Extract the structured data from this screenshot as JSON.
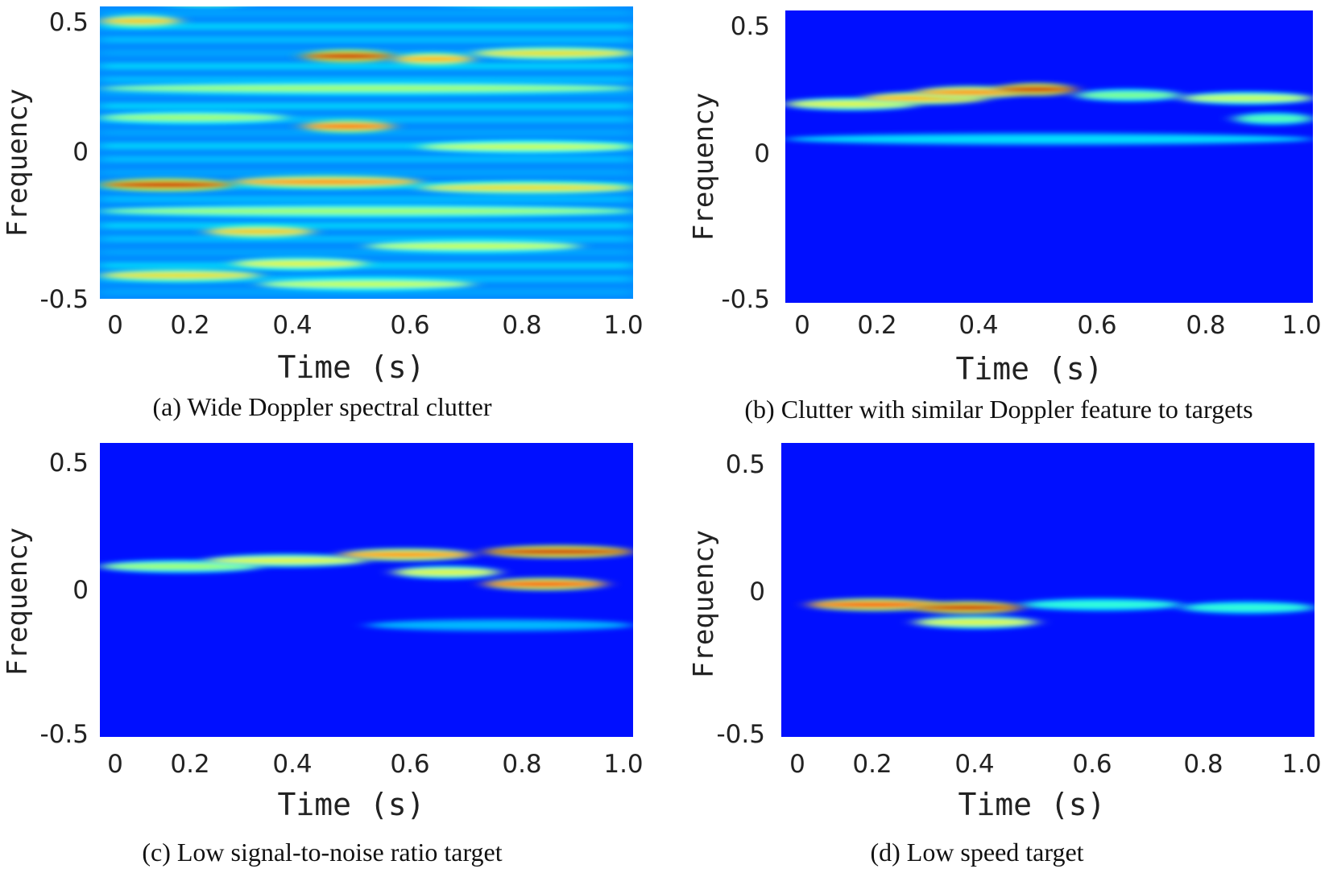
{
  "colors": {
    "background": "#0a0a8c",
    "palette": [
      "#00008f",
      "#0000ff",
      "#0080ff",
      "#00ffff",
      "#80ff80",
      "#ffff00",
      "#ff8000",
      "#ff0000",
      "#800000"
    ]
  },
  "chart_data": [
    {
      "type": "heatmap",
      "caption": "(a) Wide Doppler spectral clutter",
      "xlabel": "Time (s)",
      "ylabel": "Frequency",
      "x_ticks": [
        "0",
        "0.2",
        "0.4",
        "0.6",
        "0.8",
        "1.0"
      ],
      "y_ticks": [
        "0.5",
        "0",
        "-0.5"
      ],
      "xlim": [
        0,
        1.0
      ],
      "ylim": [
        -0.5,
        0.5
      ],
      "baseline": 0.35,
      "streaks": [
        {
          "t0": 0.0,
          "t1": 0.25,
          "f": -0.11,
          "intensity": 0.95
        },
        {
          "t0": 0.25,
          "t1": 0.6,
          "f": -0.1,
          "intensity": 0.75
        },
        {
          "t0": 0.6,
          "t1": 1.0,
          "f": -0.12,
          "intensity": 0.6
        },
        {
          "t0": 0.38,
          "t1": 0.55,
          "f": 0.33,
          "intensity": 0.95
        },
        {
          "t0": 0.55,
          "t1": 0.7,
          "f": 0.32,
          "intensity": 0.7
        },
        {
          "t0": 0.7,
          "t1": 1.0,
          "f": 0.34,
          "intensity": 0.6
        },
        {
          "t0": 0.38,
          "t1": 0.55,
          "f": 0.09,
          "intensity": 0.8
        },
        {
          "t0": 0.0,
          "t1": 0.15,
          "f": 0.45,
          "intensity": 0.65
        },
        {
          "t0": 0.1,
          "t1": 0.3,
          "f": 0.52,
          "intensity": 0.55
        },
        {
          "t0": 0.2,
          "t1": 0.4,
          "f": -0.27,
          "intensity": 0.65
        },
        {
          "t0": 0.0,
          "t1": 0.3,
          "f": -0.42,
          "intensity": 0.6
        },
        {
          "t0": 0.25,
          "t1": 0.5,
          "f": -0.38,
          "intensity": 0.55
        },
        {
          "t0": 0.6,
          "t1": 1.0,
          "f": 0.52,
          "intensity": 0.5
        },
        {
          "t0": 0.0,
          "t1": 1.0,
          "f": 0.22,
          "intensity": 0.45
        },
        {
          "t0": 0.0,
          "t1": 1.0,
          "f": -0.2,
          "intensity": 0.45
        },
        {
          "t0": 0.5,
          "t1": 0.9,
          "f": -0.32,
          "intensity": 0.5
        },
        {
          "t0": 0.0,
          "t1": 0.35,
          "f": 0.12,
          "intensity": 0.45
        },
        {
          "t0": 0.6,
          "t1": 1.0,
          "f": 0.02,
          "intensity": 0.5
        },
        {
          "t0": 0.3,
          "t1": 0.7,
          "f": -0.45,
          "intensity": 0.5
        }
      ]
    },
    {
      "type": "heatmap",
      "caption": "(b) Clutter with similar Doppler feature to targets",
      "xlabel": "Time (s)",
      "ylabel": "Frequency",
      "x_ticks": [
        "0",
        "0.2",
        "0.4",
        "0.6",
        "0.8",
        "1.0"
      ],
      "y_ticks": [
        "0.5",
        "0",
        "-0.5"
      ],
      "xlim": [
        0,
        1.0
      ],
      "ylim": [
        -0.5,
        0.5
      ],
      "baseline": 0.05,
      "streaks": [
        {
          "t0": 0.0,
          "t1": 0.25,
          "f": 0.18,
          "intensity": 0.55
        },
        {
          "t0": 0.15,
          "t1": 0.38,
          "f": 0.2,
          "intensity": 0.7
        },
        {
          "t0": 0.25,
          "t1": 0.45,
          "f": 0.22,
          "intensity": 0.75
        },
        {
          "t0": 0.4,
          "t1": 0.55,
          "f": 0.23,
          "intensity": 0.95
        },
        {
          "t0": 0.55,
          "t1": 0.75,
          "f": 0.21,
          "intensity": 0.4
        },
        {
          "t0": 0.75,
          "t1": 1.0,
          "f": 0.2,
          "intensity": 0.5
        },
        {
          "t0": 0.85,
          "t1": 1.0,
          "f": 0.13,
          "intensity": 0.35
        },
        {
          "t0": 0.0,
          "t1": 1.0,
          "f": 0.06,
          "intensity": 0.2
        }
      ]
    },
    {
      "type": "heatmap",
      "caption": "(c) Low signal-to-noise ratio target",
      "xlabel": "Time (s)",
      "ylabel": "Frequency",
      "x_ticks": [
        "0",
        "0.2",
        "0.4",
        "0.6",
        "0.8",
        "1.0"
      ],
      "y_ticks": [
        "0.5",
        "0",
        "-0.5"
      ],
      "xlim": [
        0,
        1.0
      ],
      "ylim": [
        -0.5,
        0.5
      ],
      "baseline": 0.05,
      "streaks": [
        {
          "t0": 0.0,
          "t1": 0.3,
          "f": 0.08,
          "intensity": 0.45
        },
        {
          "t0": 0.2,
          "t1": 0.5,
          "f": 0.1,
          "intensity": 0.55
        },
        {
          "t0": 0.45,
          "t1": 0.7,
          "f": 0.12,
          "intensity": 0.75
        },
        {
          "t0": 0.55,
          "t1": 0.75,
          "f": 0.06,
          "intensity": 0.55
        },
        {
          "t0": 0.72,
          "t1": 1.0,
          "f": 0.13,
          "intensity": 0.95
        },
        {
          "t0": 0.72,
          "t1": 0.95,
          "f": 0.02,
          "intensity": 0.85
        },
        {
          "t0": 0.5,
          "t1": 1.0,
          "f": -0.12,
          "intensity": 0.15
        }
      ]
    },
    {
      "type": "heatmap",
      "caption": "(d) Low speed target",
      "xlabel": "Time (s)",
      "ylabel": "Frequency",
      "x_ticks": [
        "0",
        "0.2",
        "0.4",
        "0.6",
        "0.8",
        "1.0"
      ],
      "y_ticks": [
        "0.5",
        "0",
        "-0.5"
      ],
      "xlim": [
        0,
        1.0
      ],
      "ylim": [
        -0.5,
        0.5
      ],
      "baseline": 0.05,
      "streaks": [
        {
          "t0": 0.05,
          "t1": 0.3,
          "f": -0.05,
          "intensity": 0.85
        },
        {
          "t0": 0.25,
          "t1": 0.45,
          "f": -0.06,
          "intensity": 0.95
        },
        {
          "t0": 0.25,
          "t1": 0.48,
          "f": -0.11,
          "intensity": 0.55
        },
        {
          "t0": 0.45,
          "t1": 0.75,
          "f": -0.05,
          "intensity": 0.3
        },
        {
          "t0": 0.75,
          "t1": 1.0,
          "f": -0.06,
          "intensity": 0.3
        }
      ]
    }
  ]
}
